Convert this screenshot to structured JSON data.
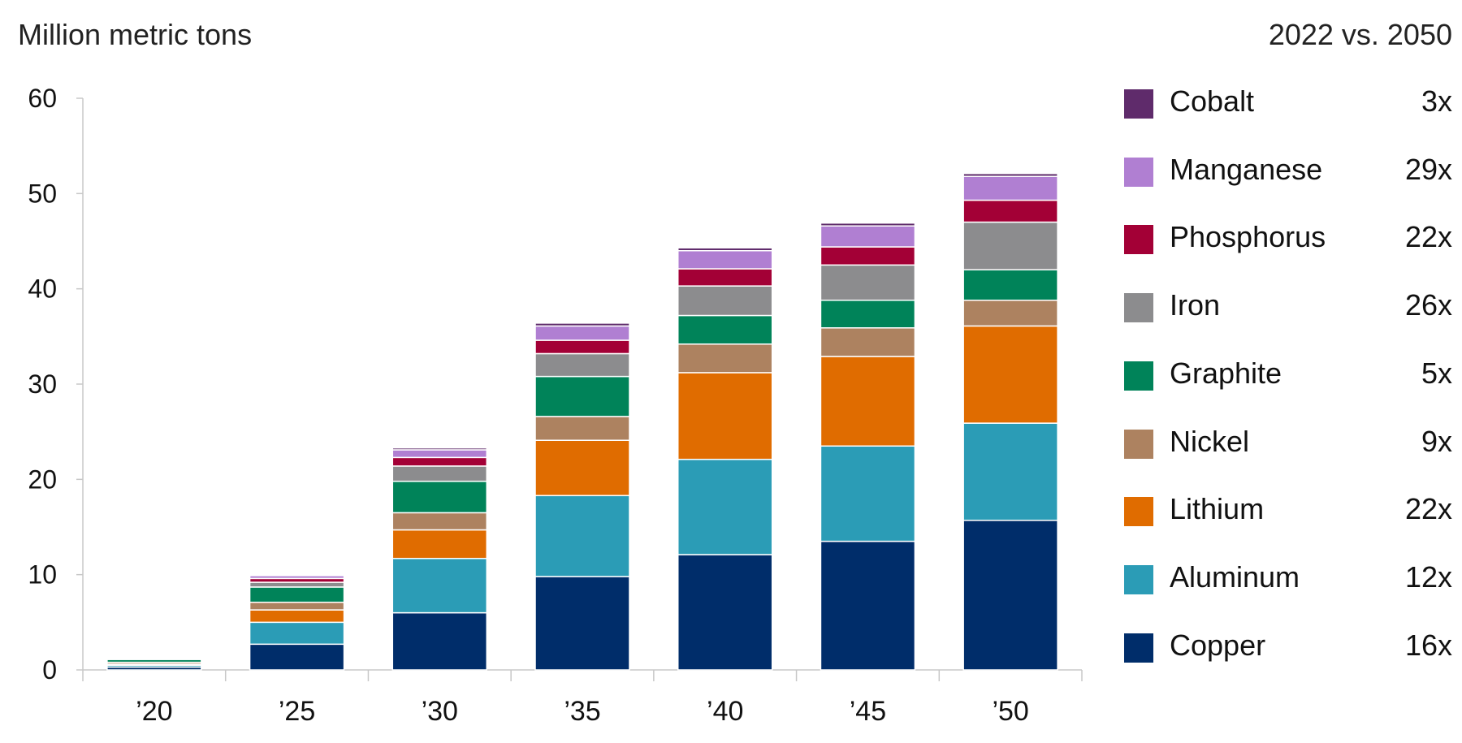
{
  "header": {
    "ylabel": "Million metric tons",
    "comparison_label": "2022 vs. 2050"
  },
  "legend_items": [
    {
      "name": "Cobalt",
      "multiplier": "3x"
    },
    {
      "name": "Manganese",
      "multiplier": "29x"
    },
    {
      "name": "Phosphorus",
      "multiplier": "22x"
    },
    {
      "name": "Iron",
      "multiplier": "26x"
    },
    {
      "name": "Graphite",
      "multiplier": "5x"
    },
    {
      "name": "Nickel",
      "multiplier": "9x"
    },
    {
      "name": "Lithium",
      "multiplier": "22x"
    },
    {
      "name": "Aluminum",
      "multiplier": "12x"
    },
    {
      "name": "Copper",
      "multiplier": "16x"
    }
  ],
  "chart_data": {
    "type": "bar",
    "stacked": true,
    "title": "",
    "xlabel": "",
    "ylabel": "Million metric tons",
    "categories": [
      "’20",
      "’25",
      "’30",
      "’35",
      "’40",
      "’45",
      "’50"
    ],
    "ylim": [
      0,
      60
    ],
    "yticks": [
      0,
      10,
      20,
      30,
      40,
      50,
      60
    ],
    "grid": false,
    "legend_position": "right",
    "series": [
      {
        "name": "Copper",
        "color": "#002d6a",
        "values": [
          0.3,
          2.7,
          6.0,
          9.8,
          12.1,
          13.5,
          15.7
        ]
      },
      {
        "name": "Aluminum",
        "color": "#2b9cb6",
        "values": [
          0.2,
          2.3,
          5.7,
          8.5,
          10.0,
          10.0,
          10.2
        ]
      },
      {
        "name": "Lithium",
        "color": "#e06c00",
        "values": [
          0.1,
          1.3,
          3.0,
          5.8,
          9.1,
          9.4,
          10.2
        ]
      },
      {
        "name": "Nickel",
        "color": "#ad8260",
        "values": [
          0.2,
          0.8,
          1.8,
          2.5,
          3.0,
          3.0,
          2.7
        ]
      },
      {
        "name": "Graphite",
        "color": "#008359",
        "values": [
          0.3,
          1.6,
          3.3,
          4.2,
          3.0,
          2.9,
          3.2
        ]
      },
      {
        "name": "Iron",
        "color": "#8c8c8e",
        "values": [
          0.1,
          0.5,
          1.6,
          2.4,
          3.1,
          3.7,
          5.0
        ]
      },
      {
        "name": "Phosphorus",
        "color": "#a30036",
        "values": [
          0.1,
          0.4,
          0.9,
          1.4,
          1.8,
          1.9,
          2.3
        ]
      },
      {
        "name": "Manganese",
        "color": "#b07fd2",
        "values": [
          0.1,
          0.3,
          0.8,
          1.5,
          1.9,
          2.2,
          2.5
        ]
      },
      {
        "name": "Cobalt",
        "color": "#5f2b6b",
        "values": [
          0.05,
          0.1,
          0.2,
          0.3,
          0.3,
          0.3,
          0.3
        ]
      }
    ]
  }
}
